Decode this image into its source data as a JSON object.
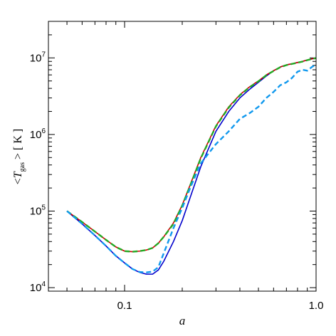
{
  "chart_data": {
    "type": "line",
    "xlabel": "a",
    "ylabel": {
      "prefix": "<",
      "var": "T",
      "sub": "gas",
      "suffix": " > [ K ]"
    },
    "xscale": "log",
    "yscale": "log",
    "xlim": [
      0.04,
      1.0
    ],
    "ylim": [
      9000,
      30000000
    ],
    "x_ticklabels": [
      {
        "value": 0.1,
        "label": "0.1"
      },
      {
        "value": 1.0,
        "label": "1.0"
      }
    ],
    "y_ticklabels": [
      {
        "value": 10000,
        "base": "10",
        "exp": "4"
      },
      {
        "value": 100000,
        "base": "10",
        "exp": "5"
      },
      {
        "value": 1000000,
        "base": "10",
        "exp": "6"
      },
      {
        "value": 10000000,
        "base": "10",
        "exp": "7"
      }
    ],
    "series": [
      {
        "color": "#0000cc",
        "dash": "solid",
        "x": [
          0.05,
          0.06,
          0.07,
          0.08,
          0.09,
          0.1,
          0.11,
          0.12,
          0.13,
          0.14,
          0.15,
          0.16,
          0.18,
          0.2,
          0.22,
          0.25,
          0.3,
          0.35,
          0.4,
          0.45,
          0.5,
          0.55,
          0.6,
          0.65,
          0.7,
          0.75,
          0.8,
          0.85,
          0.9,
          0.95,
          1.0
        ],
        "y": [
          100000,
          68000,
          48000,
          35000,
          26000,
          21000,
          17500,
          15800,
          15000,
          15000,
          17000,
          22000,
          40000,
          75000,
          150000,
          380000,
          1100000,
          2000000,
          3000000,
          3900000,
          4800000,
          5800000,
          6800000,
          7600000,
          8100000,
          8400000,
          8700000,
          9000000,
          9400000,
          9700000,
          10000000
        ]
      },
      {
        "color": "#cc0000",
        "dash": "solid",
        "x": [
          0.05,
          0.06,
          0.07,
          0.08,
          0.09,
          0.1,
          0.11,
          0.12,
          0.13,
          0.14,
          0.15,
          0.16,
          0.18,
          0.2,
          0.22,
          0.25,
          0.3,
          0.35,
          0.4,
          0.45,
          0.5,
          0.55,
          0.6,
          0.65,
          0.7,
          0.75,
          0.8,
          0.85,
          0.9,
          0.95,
          1.0
        ],
        "y": [
          100000,
          72000,
          54000,
          42000,
          34000,
          30000,
          29500,
          30000,
          31000,
          33000,
          38000,
          46000,
          70000,
          120000,
          220000,
          500000,
          1300000,
          2300000,
          3300000,
          4200000,
          5000000,
          6000000,
          6800000,
          7600000,
          8100000,
          8400000,
          8700000,
          9000000,
          9400000,
          9700000,
          10000000
        ]
      },
      {
        "color": "#22aa22",
        "dash": "dashed",
        "x": [
          0.05,
          0.06,
          0.07,
          0.08,
          0.09,
          0.1,
          0.11,
          0.12,
          0.13,
          0.14,
          0.15,
          0.16,
          0.18,
          0.2,
          0.22,
          0.25,
          0.3,
          0.35,
          0.4,
          0.45,
          0.5,
          0.55,
          0.6,
          0.65,
          0.7,
          0.75,
          0.8,
          0.85,
          0.9,
          0.95,
          1.0
        ],
        "y": [
          100000,
          72000,
          54000,
          42000,
          34000,
          30000,
          29500,
          30000,
          31000,
          33000,
          38000,
          46000,
          68000,
          118000,
          215000,
          490000,
          1280000,
          2250000,
          3250000,
          4150000,
          4950000,
          5950000,
          6750000,
          7550000,
          8050000,
          8350000,
          8650000,
          8950000,
          9350000,
          9650000,
          9950000
        ]
      },
      {
        "color": "#1199ee",
        "dash": "dashed",
        "x": [
          0.05,
          0.06,
          0.07,
          0.08,
          0.09,
          0.1,
          0.11,
          0.12,
          0.13,
          0.14,
          0.15,
          0.16,
          0.18,
          0.2,
          0.22,
          0.25,
          0.3,
          0.35,
          0.4,
          0.45,
          0.5,
          0.55,
          0.6,
          0.65,
          0.7,
          0.75,
          0.8,
          0.85,
          0.9,
          0.95,
          1.0
        ],
        "y": [
          100000,
          68000,
          48000,
          35000,
          26000,
          21000,
          17500,
          16000,
          15800,
          16200,
          18500,
          28000,
          60000,
          110000,
          200000,
          420000,
          750000,
          1100000,
          1600000,
          1900000,
          2300000,
          3000000,
          3600000,
          4400000,
          4800000,
          5500000,
          6600000,
          7000000,
          6800000,
          7600000,
          8200000
        ]
      }
    ]
  }
}
